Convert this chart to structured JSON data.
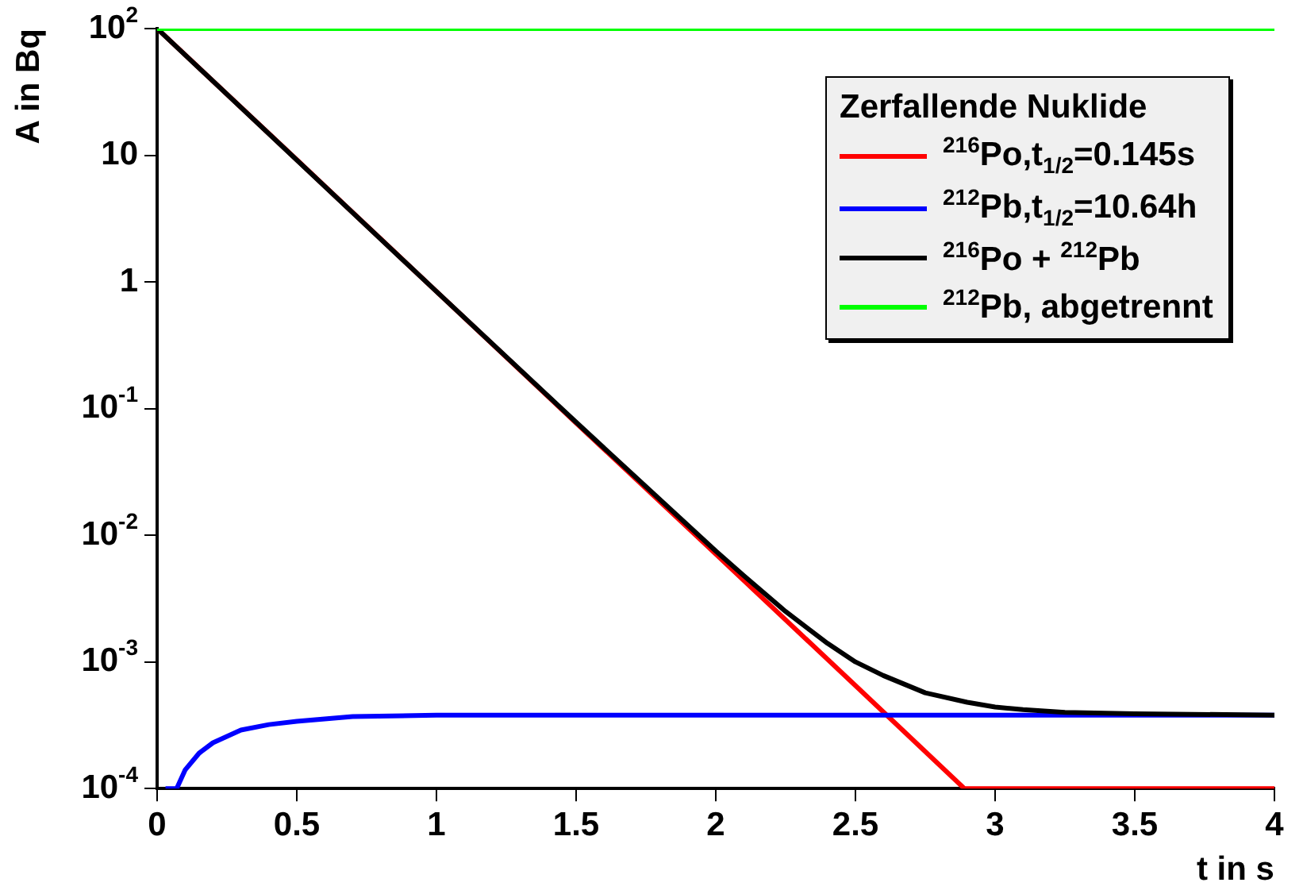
{
  "chart_data": {
    "type": "line",
    "xlabel": "t in s",
    "ylabel": "A in Bq",
    "legend_title": "Zerfallende Nuklide",
    "legend": "top right",
    "log": "y",
    "xlim": [
      0,
      4
    ],
    "xticks": [
      0,
      0.5,
      1,
      1.5,
      2,
      2.5,
      3,
      3.5,
      4
    ],
    "ylim": [
      0.0001,
      100
    ],
    "yticks": [
      {
        "value": 0.0001,
        "label": "10$^{-4}$"
      },
      {
        "value": 0.001,
        "label": "10$^{-3}$"
      },
      {
        "value": 0.01,
        "label": "10$^{-2}$"
      },
      {
        "value": 0.1,
        "label": "10$^{-1}$"
      },
      1,
      10,
      {
        "value": 100,
        "label": "10$^{2}$"
      }
    ],
    "series": [
      {
        "name": "$^{216}$Po,t$_{1/2}$=0.145s",
        "color": "#ff0000",
        "x": [
          0,
          0.5,
          1,
          1.5,
          2,
          2.5,
          2.89,
          4
        ],
        "values": [
          100,
          9.2,
          0.84,
          0.077,
          0.0071,
          0.00065,
          0.0001,
          0.0001
        ]
      },
      {
        "name": "$^{212}$Pb,t$_{1/2}$=10.64h",
        "color": "#0000ff",
        "x": [
          0.03,
          0.07,
          0.1,
          0.15,
          0.2,
          0.3,
          0.4,
          0.5,
          0.7,
          1,
          1.5,
          4
        ],
        "values": [
          0.0001,
          0.0001,
          0.00014,
          0.00019,
          0.00023,
          0.00029,
          0.00032,
          0.00034,
          0.00037,
          0.00038,
          0.00038,
          0.00038
        ]
      },
      {
        "name": "$^{216}$Po + $^{212}$Pb",
        "color": "#000000",
        "x": [
          0,
          1,
          1.5,
          2,
          2.1,
          2.25,
          2.4,
          2.5,
          2.6,
          2.75,
          2.9,
          3,
          3.1,
          3.25,
          3.5,
          4
        ],
        "values": [
          100,
          0.84,
          0.078,
          0.0075,
          0.0048,
          0.0025,
          0.0014,
          0.001,
          0.00078,
          0.00057,
          0.00048,
          0.00044,
          0.00042,
          0.0004,
          0.00039,
          0.00038
        ]
      },
      {
        "name": "$^{212}$Pb, abgetrennt",
        "color": "#00ff00",
        "x": [
          0,
          4
        ],
        "values": [
          100,
          100
        ]
      }
    ]
  }
}
